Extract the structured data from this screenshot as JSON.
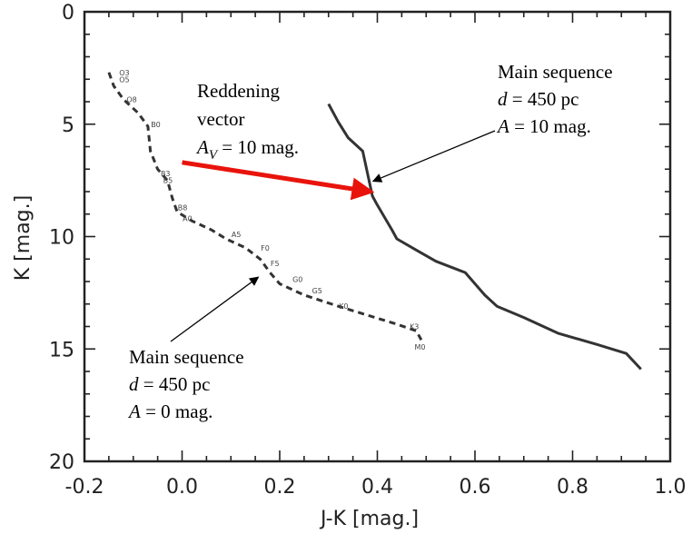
{
  "chart_data": {
    "type": "line",
    "xlabel": "J-K [mag.]",
    "ylabel": "K [mag.]",
    "xlim": [
      -0.2,
      1.0
    ],
    "ylim": [
      20,
      0
    ],
    "y_inverted": true,
    "x_ticks": [
      "-0.2",
      "0.0",
      "0.2",
      "0.4",
      "0.6",
      "0.8",
      "1.0"
    ],
    "x_tick_values": [
      -0.2,
      0.0,
      0.2,
      0.4,
      0.6,
      0.8,
      1.0
    ],
    "y_ticks": [
      "0",
      "5",
      "10",
      "15",
      "20"
    ],
    "y_tick_values": [
      0,
      5,
      10,
      15,
      20
    ],
    "grid": false,
    "series": [
      {
        "style": "dashed",
        "color": "#333333",
        "points": [
          [
            -0.15,
            2.7
          ],
          [
            -0.14,
            3.3
          ],
          [
            -0.12,
            3.9
          ],
          [
            -0.09,
            4.5
          ],
          [
            -0.07,
            5.1
          ],
          [
            -0.065,
            6.2
          ],
          [
            -0.05,
            7.0
          ],
          [
            -0.03,
            7.5
          ],
          [
            -0.02,
            8.3
          ],
          [
            -0.01,
            8.9
          ],
          [
            0.02,
            9.3
          ],
          [
            0.06,
            9.7
          ],
          [
            0.09,
            10.1
          ],
          [
            0.13,
            10.5
          ],
          [
            0.16,
            11.0
          ],
          [
            0.18,
            11.6
          ],
          [
            0.2,
            12.1
          ],
          [
            0.25,
            12.6
          ],
          [
            0.32,
            13.1
          ],
          [
            0.38,
            13.5
          ],
          [
            0.44,
            13.9
          ],
          [
            0.48,
            14.2
          ],
          [
            0.49,
            14.6
          ]
        ]
      },
      {
        "style": "solid",
        "color": "#333333",
        "points": [
          [
            0.3,
            4.1
          ],
          [
            0.32,
            4.9
          ],
          [
            0.34,
            5.6
          ],
          [
            0.37,
            6.2
          ],
          [
            0.39,
            8.2
          ],
          [
            0.4,
            8.6
          ],
          [
            0.43,
            9.7
          ],
          [
            0.44,
            10.1
          ],
          [
            0.48,
            10.6
          ],
          [
            0.52,
            11.1
          ],
          [
            0.58,
            11.6
          ],
          [
            0.62,
            12.6
          ],
          [
            0.645,
            13.1
          ],
          [
            0.7,
            13.6
          ],
          [
            0.77,
            14.3
          ],
          [
            0.85,
            14.8
          ],
          [
            0.91,
            15.2
          ],
          [
            0.94,
            15.9
          ]
        ]
      }
    ],
    "spectral_types": [
      {
        "label": "O3",
        "x": -0.14,
        "y": 2.7
      },
      {
        "label": "O5",
        "x": -0.14,
        "y": 3.0
      },
      {
        "label": "O8",
        "x": -0.125,
        "y": 3.9
      },
      {
        "label": "B0",
        "x": -0.075,
        "y": 5.0
      },
      {
        "label": "B3",
        "x": -0.055,
        "y": 7.2
      },
      {
        "label": "B5",
        "x": -0.05,
        "y": 7.5
      },
      {
        "label": "B8",
        "x": -0.02,
        "y": 8.7
      },
      {
        "label": "A0",
        "x": -0.01,
        "y": 9.2
      },
      {
        "label": "A5",
        "x": 0.09,
        "y": 9.9
      },
      {
        "label": "F0",
        "x": 0.15,
        "y": 10.5
      },
      {
        "label": "F5",
        "x": 0.17,
        "y": 11.2
      },
      {
        "label": "G0",
        "x": 0.215,
        "y": 11.9
      },
      {
        "label": "G5",
        "x": 0.255,
        "y": 12.4
      },
      {
        "label": "K0",
        "x": 0.31,
        "y": 13.1
      },
      {
        "label": "K3",
        "x": 0.455,
        "y": 14.0
      },
      {
        "label": "M0",
        "x": 0.465,
        "y": 14.9
      }
    ],
    "reddening_vector": {
      "color": "#e8140c",
      "from": [
        0.0,
        6.7
      ],
      "to": [
        0.385,
        8.0
      ]
    },
    "annotations": [
      {
        "lines": [
          {
            "text": "Reddening",
            "italic": false
          },
          {
            "text": "vector",
            "italic": false
          },
          {
            "prefix": "A",
            "sub": "V",
            "text": " = 10 mag.",
            "italic_prefix": true
          }
        ]
      },
      {
        "lines": [
          {
            "text": "Main sequence",
            "italic": false
          },
          {
            "prefix": "d",
            "text": " = 450 pc",
            "italic_prefix": true
          },
          {
            "prefix": "A",
            "text": " = 10 mag.",
            "italic_prefix": true
          }
        ],
        "arrow_to": [
          0.38,
          7.7
        ]
      },
      {
        "lines": [
          {
            "text": "Main sequence",
            "italic": false
          },
          {
            "prefix": "d",
            "text": " = 450 pc",
            "italic_prefix": true
          },
          {
            "prefix": "A",
            "text": " = 0 mag.",
            "italic_prefix": true
          }
        ],
        "arrow_to": [
          0.16,
          11.4
        ]
      }
    ]
  }
}
